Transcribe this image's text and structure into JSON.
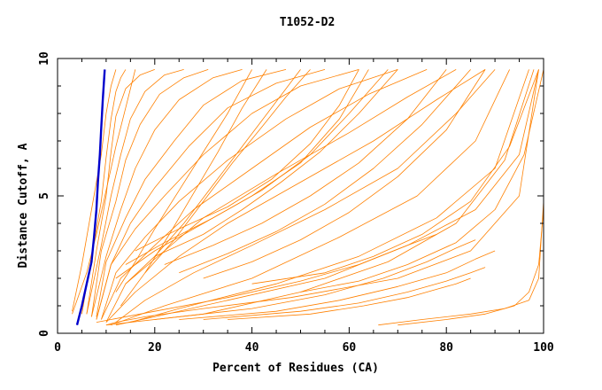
{
  "chart_data": {
    "type": "line",
    "title": "T1052-D2",
    "xlabel": "Percent of Residues (CA)",
    "ylabel": "Distance Cutoff, A",
    "xlim": [
      0,
      100
    ],
    "ylim": [
      0,
      10
    ],
    "x_ticks": [
      0,
      20,
      40,
      60,
      80,
      100
    ],
    "y_ticks": [
      0,
      5,
      10
    ],
    "x_tick_labels": [
      "0",
      "20",
      "40",
      "60",
      "80",
      "100"
    ],
    "y_tick_labels": [
      "0",
      "5",
      "10"
    ],
    "grid": false,
    "legend": "none",
    "colors": {
      "models": "#ff8000",
      "highlight": "#0000cc",
      "axes": "#000000"
    },
    "series": [
      {
        "role": "model",
        "x": [
          10,
          12,
          18,
          30,
          48,
          70,
          85,
          95,
          99
        ],
        "y": [
          0.3,
          0.4,
          0.6,
          0.9,
          1.3,
          2.0,
          3.0,
          5.0,
          9.6
        ]
      },
      {
        "role": "model",
        "x": [
          12,
          20,
          35,
          55,
          72,
          86,
          95,
          99
        ],
        "y": [
          0.3,
          0.6,
          1.2,
          2.0,
          3.2,
          4.5,
          6.5,
          9.6
        ]
      },
      {
        "role": "model",
        "x": [
          15,
          25,
          45,
          62,
          78,
          90,
          97
        ],
        "y": [
          0.4,
          0.9,
          1.8,
          2.8,
          4.2,
          6.0,
          9.6
        ]
      },
      {
        "role": "model",
        "x": [
          10,
          30,
          50,
          68,
          82,
          92,
          98
        ],
        "y": [
          0.3,
          0.7,
          1.5,
          2.6,
          4.0,
          6.3,
          9.6
        ]
      },
      {
        "role": "model",
        "x": [
          11,
          22,
          40,
          58,
          74,
          86,
          93
        ],
        "y": [
          0.3,
          1.0,
          2.0,
          3.5,
          5.0,
          7.0,
          9.6
        ]
      },
      {
        "role": "model",
        "x": [
          12,
          18,
          28,
          40,
          55,
          70,
          82,
          90
        ],
        "y": [
          0.4,
          1.2,
          2.2,
          3.2,
          4.5,
          6.0,
          8.0,
          9.6
        ]
      },
      {
        "role": "model",
        "x": [
          10,
          16,
          25,
          35,
          50,
          65,
          78,
          88
        ],
        "y": [
          0.4,
          1.5,
          2.8,
          4.0,
          5.5,
          7.0,
          8.5,
          9.6
        ]
      },
      {
        "role": "model",
        "x": [
          10,
          14,
          22,
          30,
          45,
          60,
          72,
          82
        ],
        "y": [
          0.4,
          1.8,
          3.0,
          4.2,
          5.8,
          7.3,
          8.6,
          9.6
        ]
      },
      {
        "role": "model",
        "x": [
          9,
          13,
          20,
          28,
          40,
          52,
          64,
          76
        ],
        "y": [
          0.5,
          2.0,
          3.2,
          4.5,
          6.0,
          7.5,
          8.7,
          9.6
        ]
      },
      {
        "role": "model",
        "x": [
          9,
          12,
          18,
          25,
          35,
          47,
          58,
          70
        ],
        "y": [
          0.5,
          2.2,
          3.5,
          4.8,
          6.3,
          7.8,
          8.9,
          9.6
        ]
      },
      {
        "role": "model",
        "x": [
          8,
          11,
          16,
          22,
          30,
          40,
          50,
          62
        ],
        "y": [
          0.5,
          2.5,
          3.8,
          5.0,
          6.5,
          8.0,
          9.0,
          9.6
        ]
      },
      {
        "role": "model",
        "x": [
          8,
          11,
          15,
          20,
          27,
          35,
          45,
          55
        ],
        "y": [
          0.5,
          2.5,
          4.0,
          5.3,
          6.8,
          8.2,
          9.1,
          9.6
        ]
      },
      {
        "role": "model",
        "x": [
          8,
          10,
          14,
          18,
          24,
          30,
          38,
          47
        ],
        "y": [
          0.6,
          2.6,
          4.2,
          5.6,
          7.0,
          8.3,
          9.2,
          9.6
        ]
      },
      {
        "role": "model",
        "x": [
          7,
          10,
          13,
          16,
          20,
          25,
          32,
          38
        ],
        "y": [
          0.6,
          2.8,
          4.5,
          6.0,
          7.4,
          8.5,
          9.3,
          9.6
        ]
      },
      {
        "role": "model",
        "x": [
          7,
          9,
          12,
          14,
          17,
          21,
          26,
          31
        ],
        "y": [
          0.6,
          3.0,
          4.8,
          6.3,
          7.6,
          8.7,
          9.3,
          9.6
        ]
      },
      {
        "role": "model",
        "x": [
          6,
          9,
          11,
          13,
          15,
          18,
          22,
          26
        ],
        "y": [
          0.7,
          3.2,
          5.0,
          6.5,
          7.8,
          8.8,
          9.4,
          9.6
        ]
      },
      {
        "role": "model",
        "x": [
          6,
          8,
          10,
          11,
          12,
          14,
          17,
          20
        ],
        "y": [
          0.7,
          3.0,
          5.0,
          6.6,
          7.9,
          8.9,
          9.4,
          9.6
        ]
      },
      {
        "role": "model",
        "x": [
          5,
          7,
          9,
          10,
          11,
          12,
          13,
          14
        ],
        "y": [
          0.7,
          2.8,
          4.8,
          6.4,
          7.8,
          8.8,
          9.3,
          9.6
        ]
      },
      {
        "role": "model",
        "x": [
          3,
          5,
          7,
          9,
          10,
          11,
          12
        ],
        "y": [
          0.8,
          2.5,
          4.5,
          6.5,
          8.0,
          9.0,
          9.6
        ]
      },
      {
        "role": "model",
        "x": [
          3,
          6,
          8,
          10,
          12,
          14,
          16
        ],
        "y": [
          0.7,
          2.2,
          3.6,
          5.2,
          6.8,
          8.2,
          9.6
        ]
      },
      {
        "role": "model",
        "x": [
          12,
          20,
          30,
          40,
          50,
          58,
          64
        ],
        "y": [
          2.0,
          3.0,
          4.0,
          5.0,
          6.2,
          7.8,
          9.6
        ]
      },
      {
        "role": "model",
        "x": [
          14,
          22,
          32,
          42,
          52,
          60,
          68
        ],
        "y": [
          2.5,
          3.3,
          4.2,
          5.2,
          6.5,
          8.0,
          9.6
        ]
      },
      {
        "role": "model",
        "x": [
          16,
          25,
          35,
          44,
          52,
          58,
          62
        ],
        "y": [
          3.0,
          3.8,
          4.6,
          5.6,
          6.9,
          8.3,
          9.6
        ]
      },
      {
        "role": "model",
        "x": [
          20,
          30,
          38,
          46,
          54,
          62,
          70
        ],
        "y": [
          2.8,
          3.6,
          4.5,
          5.5,
          6.6,
          8.0,
          9.6
        ]
      },
      {
        "role": "model",
        "x": [
          22,
          32,
          42,
          52,
          62,
          72,
          80
        ],
        "y": [
          2.5,
          3.2,
          4.0,
          5.0,
          6.2,
          7.8,
          9.6
        ]
      },
      {
        "role": "model",
        "x": [
          25,
          35,
          45,
          55,
          65,
          75,
          85
        ],
        "y": [
          2.2,
          2.9,
          3.7,
          4.7,
          6.0,
          7.6,
          9.6
        ]
      },
      {
        "role": "model",
        "x": [
          30,
          40,
          50,
          60,
          70,
          80,
          88
        ],
        "y": [
          2.0,
          2.6,
          3.4,
          4.4,
          5.7,
          7.4,
          9.6
        ]
      },
      {
        "role": "model",
        "x": [
          14,
          20,
          26,
          32,
          38,
          44,
          50
        ],
        "y": [
          1.8,
          2.8,
          4.0,
          5.4,
          6.8,
          8.2,
          9.6
        ]
      },
      {
        "role": "model",
        "x": [
          18,
          24,
          30,
          36,
          42,
          47,
          52
        ],
        "y": [
          2.2,
          3.4,
          4.8,
          6.2,
          7.5,
          8.6,
          9.6
        ]
      },
      {
        "role": "model",
        "x": [
          12,
          16,
          20,
          25,
          30,
          35,
          40
        ],
        "y": [
          1.5,
          2.6,
          3.8,
          5.2,
          6.6,
          8.0,
          9.6
        ]
      },
      {
        "role": "model",
        "x": [
          13,
          18,
          23,
          28,
          33,
          38,
          43
        ],
        "y": [
          1.0,
          2.2,
          3.6,
          5.1,
          6.6,
          8.2,
          9.6
        ]
      },
      {
        "role": "model",
        "x": [
          40,
          55,
          65,
          75,
          85,
          93,
          99
        ],
        "y": [
          1.8,
          2.2,
          2.8,
          3.6,
          4.8,
          6.8,
          9.6
        ]
      },
      {
        "role": "model",
        "x": [
          50,
          62,
          72,
          82,
          90,
          96,
          100
        ],
        "y": [
          1.5,
          1.9,
          2.5,
          3.3,
          4.5,
          6.5,
          9.6
        ]
      },
      {
        "role": "model",
        "x": [
          8,
          20,
          35,
          50,
          62,
          72,
          78
        ],
        "y": [
          0.4,
          0.8,
          1.3,
          1.9,
          2.5,
          3.2,
          3.6
        ]
      },
      {
        "role": "model",
        "x": [
          20,
          40,
          55,
          67,
          76,
          82,
          86
        ],
        "y": [
          0.5,
          0.9,
          1.4,
          2.0,
          2.6,
          3.1,
          3.4
        ]
      },
      {
        "role": "model",
        "x": [
          25,
          45,
          58,
          70,
          80,
          86,
          90
        ],
        "y": [
          0.5,
          0.8,
          1.2,
          1.7,
          2.2,
          2.7,
          3.0
        ]
      },
      {
        "role": "model",
        "x": [
          30,
          50,
          62,
          72,
          80,
          85,
          88
        ],
        "y": [
          0.5,
          0.8,
          1.1,
          1.5,
          1.9,
          2.2,
          2.4
        ]
      },
      {
        "role": "model",
        "x": [
          35,
          52,
          63,
          72,
          78,
          82,
          85
        ],
        "y": [
          0.5,
          0.7,
          1.0,
          1.3,
          1.6,
          1.8,
          2.0
        ]
      },
      {
        "role": "model",
        "x": [
          66,
          75,
          85,
          92,
          97,
          99,
          100
        ],
        "y": [
          0.3,
          0.5,
          0.7,
          0.9,
          1.2,
          2.0,
          4.8
        ]
      },
      {
        "role": "model",
        "x": [
          70,
          80,
          88,
          94,
          97,
          99,
          100
        ],
        "y": [
          0.3,
          0.5,
          0.7,
          1.0,
          1.5,
          2.5,
          4.5
        ]
      }
    ],
    "highlight_series": {
      "role": "highlight",
      "x": [
        4,
        5,
        6,
        7,
        7.5,
        8,
        8.3,
        8.7,
        9,
        9.3,
        9.7
      ],
      "y": [
        0.3,
        1.0,
        1.8,
        2.6,
        3.5,
        4.5,
        5.5,
        6.5,
        7.5,
        8.5,
        9.6
      ]
    }
  }
}
